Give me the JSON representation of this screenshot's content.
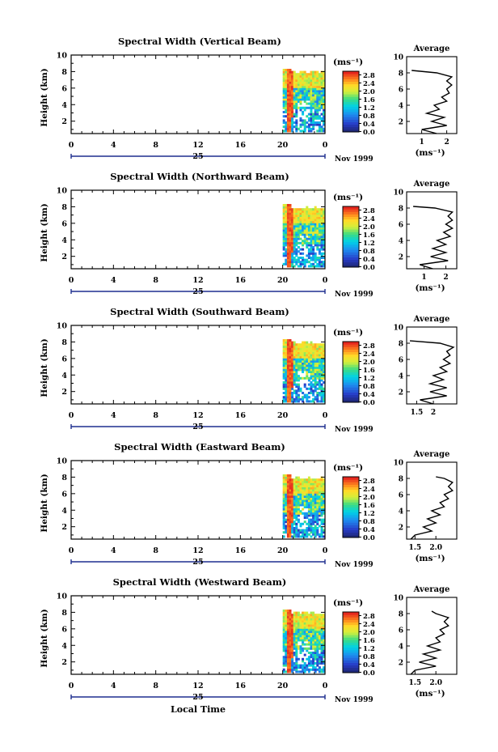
{
  "chart_data": [
    {
      "type": "heatmap",
      "title": "Spectral Width (Vertical Beam)",
      "ylabel": "Height (km)",
      "y_ticks": [
        "2",
        "4",
        "6",
        "8",
        "10"
      ],
      "x_ticks": [
        "0",
        "4",
        "8",
        "12",
        "16",
        "20",
        "0"
      ],
      "date_label": "25",
      "month_label": "Nov 1999",
      "ylim": [
        0.5,
        10
      ],
      "xlim": [
        0,
        24
      ],
      "data_start_hour": 20.0,
      "data_top_km": 8.3,
      "colorbar": {
        "unit": "(ms⁻¹)",
        "ticks": [
          "0.0",
          "0.4",
          "0.8",
          "1.2",
          "1.6",
          "2.0",
          "2.4",
          "2.8"
        ],
        "range": [
          0,
          3.0
        ]
      },
      "average": {
        "title": "Average",
        "xlabel": "(ms⁻¹)",
        "x_ticks": [
          "1",
          "2"
        ],
        "x_tick_values": [
          1,
          2
        ],
        "xlim": [
          0.4,
          2.4
        ],
        "y_ticks": [
          "2",
          "4",
          "6",
          "8",
          "10"
        ],
        "ylim": [
          0.5,
          10
        ],
        "profile": [
          [
            0.5,
            1.6
          ],
          [
            1,
            1.0
          ],
          [
            1.5,
            2.0
          ],
          [
            2,
            1.4
          ],
          [
            2.5,
            1.9
          ],
          [
            3,
            1.2
          ],
          [
            3.5,
            1.7
          ],
          [
            4,
            1.5
          ],
          [
            4.5,
            2.0
          ],
          [
            5,
            1.8
          ],
          [
            5.5,
            2.1
          ],
          [
            6,
            2.0
          ],
          [
            6.5,
            2.2
          ],
          [
            7,
            2.0
          ],
          [
            7.5,
            2.2
          ],
          [
            8,
            1.6
          ],
          [
            8.3,
            0.6
          ]
        ]
      }
    },
    {
      "type": "heatmap",
      "title": "Spectral Width (Northward Beam)",
      "ylabel": "Height (km)",
      "y_ticks": [
        "2",
        "4",
        "6",
        "8",
        "10"
      ],
      "x_ticks": [
        "0",
        "4",
        "8",
        "12",
        "16",
        "20",
        "0"
      ],
      "date_label": "25",
      "month_label": "Nov 1999",
      "ylim": [
        0.5,
        10
      ],
      "xlim": [
        0,
        24
      ],
      "data_start_hour": 20.0,
      "data_top_km": 8.2,
      "colorbar": {
        "unit": "(ms⁻¹)",
        "ticks": [
          "0.0",
          "0.4",
          "0.8",
          "1.2",
          "1.6",
          "2.0",
          "2.4",
          "2.8"
        ],
        "range": [
          0,
          3.0
        ]
      },
      "average": {
        "title": "Average",
        "xlabel": "(ms⁻¹)",
        "x_ticks": [
          "1",
          "2"
        ],
        "x_tick_values": [
          1,
          2
        ],
        "xlim": [
          0.2,
          2.5
        ],
        "y_ticks": [
          "2",
          "4",
          "6",
          "8",
          "10"
        ],
        "ylim": [
          0.5,
          10
        ],
        "profile": [
          [
            0.5,
            1.4
          ],
          [
            1,
            0.8
          ],
          [
            1.5,
            2.1
          ],
          [
            2,
            1.3
          ],
          [
            2.5,
            2.0
          ],
          [
            3,
            1.4
          ],
          [
            3.5,
            2.0
          ],
          [
            4,
            1.6
          ],
          [
            4.5,
            2.2
          ],
          [
            5,
            1.9
          ],
          [
            5.5,
            2.3
          ],
          [
            6,
            2.0
          ],
          [
            6.5,
            2.3
          ],
          [
            7,
            2.1
          ],
          [
            7.5,
            2.3
          ],
          [
            8,
            1.5
          ],
          [
            8.2,
            0.5
          ]
        ]
      }
    },
    {
      "type": "heatmap",
      "title": "Spectral Width (Southward Beam)",
      "ylabel": "Height (km)",
      "y_ticks": [
        "2",
        "4",
        "6",
        "8",
        "10"
      ],
      "x_ticks": [
        "0",
        "4",
        "8",
        "12",
        "16",
        "20",
        "0"
      ],
      "date_label": "25",
      "month_label": "Nov 1999",
      "ylim": [
        0.5,
        10
      ],
      "xlim": [
        0,
        24
      ],
      "data_start_hour": 20.0,
      "data_top_km": 8.3,
      "colorbar": {
        "unit": "(ms⁻¹)",
        "ticks": [
          "0.0",
          "0.4",
          "0.8",
          "1.2",
          "1.6",
          "2.0",
          "2.4",
          "2.8"
        ],
        "range": [
          0,
          3.0
        ]
      },
      "average": {
        "title": "Average",
        "xlabel": "",
        "x_ticks": [
          "1.5",
          "2"
        ],
        "x_tick_values": [
          1.5,
          2
        ],
        "xlim": [
          1.2,
          2.7
        ],
        "y_ticks": [
          "2",
          "4",
          "6",
          "8",
          "10"
        ],
        "ylim": [
          0.5,
          10
        ],
        "profile": [
          [
            0.5,
            2.0
          ],
          [
            1,
            1.6
          ],
          [
            1.5,
            2.4
          ],
          [
            2,
            1.9
          ],
          [
            2.5,
            2.4
          ],
          [
            3,
            1.9
          ],
          [
            3.5,
            2.3
          ],
          [
            4,
            2.0
          ],
          [
            4.5,
            2.4
          ],
          [
            5,
            2.2
          ],
          [
            5.5,
            2.5
          ],
          [
            6,
            2.3
          ],
          [
            6.5,
            2.5
          ],
          [
            7,
            2.4
          ],
          [
            7.5,
            2.6
          ],
          [
            8,
            2.2
          ],
          [
            8.3,
            1.3
          ]
        ]
      }
    },
    {
      "type": "heatmap",
      "title": "Spectral Width (Eastward Beam)",
      "ylabel": "Height (km)",
      "y_ticks": [
        "2",
        "4",
        "6",
        "8",
        "10"
      ],
      "x_ticks": [
        "0",
        "4",
        "8",
        "12",
        "16",
        "20",
        "0"
      ],
      "date_label": "25",
      "month_label": "Nov 1999",
      "ylim": [
        0.5,
        10
      ],
      "xlim": [
        0,
        24
      ],
      "data_start_hour": 20.0,
      "data_top_km": 8.2,
      "colorbar": {
        "unit": "(ms⁻¹)",
        "ticks": [
          "0.0",
          "0.4",
          "0.8",
          "1.2",
          "1.6",
          "2.0",
          "2.4",
          "2.8"
        ],
        "range": [
          0,
          3.0
        ]
      },
      "average": {
        "title": "Average",
        "xlabel": "(ms⁻¹)",
        "x_ticks": [
          "1.5",
          "2.0"
        ],
        "x_tick_values": [
          1.5,
          2.0
        ],
        "xlim": [
          1.3,
          2.5
        ],
        "y_ticks": [
          "2",
          "4",
          "6",
          "8",
          "10"
        ],
        "ylim": [
          0.5,
          10
        ],
        "profile": [
          [
            0.5,
            1.4
          ],
          [
            1,
            1.5
          ],
          [
            1.5,
            1.9
          ],
          [
            2,
            1.7
          ],
          [
            2.5,
            2.0
          ],
          [
            3,
            1.8
          ],
          [
            3.5,
            2.1
          ],
          [
            4,
            1.9
          ],
          [
            4.5,
            2.2
          ],
          [
            5,
            2.1
          ],
          [
            5.5,
            2.3
          ],
          [
            6,
            2.2
          ],
          [
            6.5,
            2.4
          ],
          [
            7,
            2.3
          ],
          [
            7.5,
            2.4
          ],
          [
            8,
            2.2
          ],
          [
            8.2,
            2.0
          ]
        ]
      }
    },
    {
      "type": "heatmap",
      "title": "Spectral Width (Westward Beam)",
      "ylabel": "Height (km)",
      "y_ticks": [
        "2",
        "4",
        "6",
        "8",
        "10"
      ],
      "x_ticks": [
        "0",
        "4",
        "8",
        "12",
        "16",
        "20",
        "0"
      ],
      "date_label": "25",
      "month_label": "Nov 1999",
      "xlabel": "Local Time",
      "ylim": [
        0.5,
        10
      ],
      "xlim": [
        0,
        24
      ],
      "data_start_hour": 20.0,
      "data_top_km": 8.3,
      "colorbar": {
        "unit": "(ms⁻¹)",
        "ticks": [
          "0.0",
          "0.4",
          "0.8",
          "1.2",
          "1.6",
          "2.0",
          "2.4",
          "2.8"
        ],
        "range": [
          0,
          3.0
        ]
      },
      "average": {
        "title": "Average",
        "xlabel": "(ms⁻¹)",
        "x_ticks": [
          "1.5",
          "2.0"
        ],
        "x_tick_values": [
          1.5,
          2.0
        ],
        "xlim": [
          1.3,
          2.5
        ],
        "y_ticks": [
          "2",
          "4",
          "6",
          "8",
          "10"
        ],
        "ylim": [
          0.5,
          10
        ],
        "profile": [
          [
            0.5,
            1.4
          ],
          [
            1,
            1.5
          ],
          [
            1.5,
            2.0
          ],
          [
            2,
            1.6
          ],
          [
            2.5,
            2.0
          ],
          [
            3,
            1.7
          ],
          [
            3.5,
            2.1
          ],
          [
            4,
            1.8
          ],
          [
            4.5,
            2.1
          ],
          [
            5,
            2.0
          ],
          [
            5.5,
            2.2
          ],
          [
            6,
            2.1
          ],
          [
            6.5,
            2.3
          ],
          [
            7,
            2.2
          ],
          [
            7.5,
            2.3
          ],
          [
            8,
            2.0
          ],
          [
            8.3,
            1.9
          ]
        ]
      }
    }
  ]
}
